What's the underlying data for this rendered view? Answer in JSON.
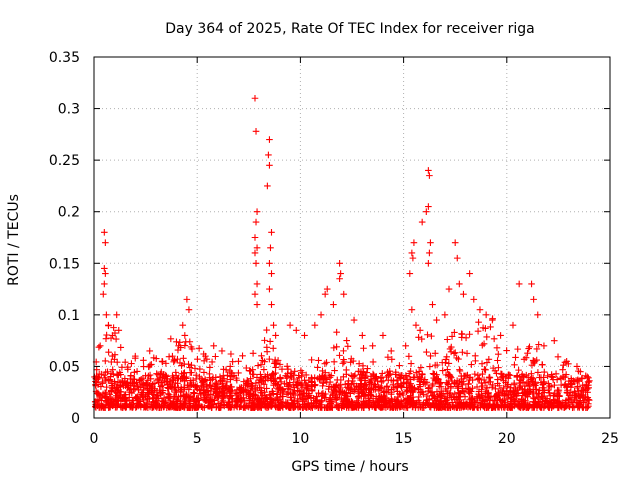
{
  "chart_data": {
    "type": "scatter",
    "title": "Day 364 of 2025, Rate Of TEC Index for receiver riga",
    "xlabel": "GPS time / hours",
    "ylabel": "ROTI / TECUs",
    "xlim": [
      0,
      25
    ],
    "ylim": [
      0,
      0.35
    ],
    "x_ticks": [
      0,
      5,
      10,
      15,
      20,
      25
    ],
    "y_ticks": [
      0,
      0.05,
      0.1,
      0.15,
      0.2,
      0.25,
      0.3,
      0.35
    ],
    "x_tick_labels": [
      "0",
      "5",
      "10",
      "15",
      "20",
      "25"
    ],
    "y_tick_labels": [
      "0",
      "0.05",
      "0.1",
      "0.15",
      "0.2",
      "0.25",
      "0.3",
      "0.35"
    ],
    "grid": true,
    "marker": "+",
    "color": "#ff0000",
    "series": [
      {
        "name": "ROTI",
        "x_range": [
          0,
          24
        ],
        "typical_range": [
          0.01,
          0.04
        ],
        "points": [
          [
            0.3,
            0.07
          ],
          [
            0.5,
            0.18
          ],
          [
            0.55,
            0.17
          ],
          [
            0.5,
            0.145
          ],
          [
            0.55,
            0.14
          ],
          [
            0.5,
            0.13
          ],
          [
            0.45,
            0.12
          ],
          [
            0.6,
            0.1
          ],
          [
            0.7,
            0.09
          ],
          [
            0.9,
            0.08
          ],
          [
            1.1,
            0.1
          ],
          [
            1.2,
            0.085
          ],
          [
            2.0,
            0.06
          ],
          [
            2.7,
            0.065
          ],
          [
            3.3,
            0.055
          ],
          [
            3.8,
            0.06
          ],
          [
            4.1,
            0.07
          ],
          [
            4.3,
            0.09
          ],
          [
            4.5,
            0.115
          ],
          [
            4.6,
            0.105
          ],
          [
            4.4,
            0.08
          ],
          [
            5.4,
            0.06
          ],
          [
            5.8,
            0.07
          ],
          [
            6.2,
            0.065
          ],
          [
            6.6,
            0.05
          ],
          [
            7.0,
            0.055
          ],
          [
            7.8,
            0.31
          ],
          [
            7.85,
            0.278
          ],
          [
            7.9,
            0.2
          ],
          [
            7.85,
            0.19
          ],
          [
            7.8,
            0.175
          ],
          [
            7.9,
            0.165
          ],
          [
            7.8,
            0.16
          ],
          [
            7.85,
            0.15
          ],
          [
            7.9,
            0.13
          ],
          [
            7.8,
            0.12
          ],
          [
            7.9,
            0.11
          ],
          [
            8.5,
            0.27
          ],
          [
            8.45,
            0.255
          ],
          [
            8.5,
            0.245
          ],
          [
            8.4,
            0.225
          ],
          [
            8.6,
            0.18
          ],
          [
            8.55,
            0.165
          ],
          [
            8.5,
            0.15
          ],
          [
            8.6,
            0.14
          ],
          [
            8.5,
            0.125
          ],
          [
            8.6,
            0.11
          ],
          [
            8.7,
            0.09
          ],
          [
            8.8,
            0.08
          ],
          [
            9.5,
            0.09
          ],
          [
            9.8,
            0.085
          ],
          [
            10.2,
            0.08
          ],
          [
            10.7,
            0.09
          ],
          [
            11.0,
            0.1
          ],
          [
            11.2,
            0.12
          ],
          [
            11.3,
            0.125
          ],
          [
            11.6,
            0.11
          ],
          [
            11.9,
            0.15
          ],
          [
            11.95,
            0.14
          ],
          [
            11.9,
            0.135
          ],
          [
            12.1,
            0.12
          ],
          [
            12.6,
            0.095
          ],
          [
            13.0,
            0.08
          ],
          [
            13.5,
            0.07
          ],
          [
            14.0,
            0.08
          ],
          [
            14.4,
            0.065
          ],
          [
            15.1,
            0.07
          ],
          [
            15.3,
            0.14
          ],
          [
            15.4,
            0.16
          ],
          [
            15.5,
            0.17
          ],
          [
            15.45,
            0.155
          ],
          [
            15.4,
            0.105
          ],
          [
            15.6,
            0.09
          ],
          [
            15.8,
            0.085
          ],
          [
            15.9,
            0.19
          ],
          [
            16.2,
            0.24
          ],
          [
            16.25,
            0.235
          ],
          [
            16.2,
            0.205
          ],
          [
            16.1,
            0.2
          ],
          [
            16.3,
            0.17
          ],
          [
            16.25,
            0.16
          ],
          [
            16.2,
            0.15
          ],
          [
            16.4,
            0.11
          ],
          [
            16.6,
            0.095
          ],
          [
            17.0,
            0.1
          ],
          [
            17.2,
            0.125
          ],
          [
            17.5,
            0.17
          ],
          [
            17.6,
            0.155
          ],
          [
            17.7,
            0.13
          ],
          [
            17.9,
            0.12
          ],
          [
            18.2,
            0.14
          ],
          [
            18.4,
            0.115
          ],
          [
            18.7,
            0.105
          ],
          [
            19.0,
            0.1
          ],
          [
            19.3,
            0.095
          ],
          [
            19.7,
            0.08
          ],
          [
            20.3,
            0.09
          ],
          [
            20.6,
            0.13
          ],
          [
            21.2,
            0.13
          ],
          [
            21.3,
            0.115
          ],
          [
            21.5,
            0.1
          ],
          [
            21.8,
            0.07
          ],
          [
            22.3,
            0.075
          ],
          [
            22.9,
            0.055
          ],
          [
            23.4,
            0.05
          ],
          [
            23.9,
            0.04
          ]
        ]
      }
    ]
  }
}
